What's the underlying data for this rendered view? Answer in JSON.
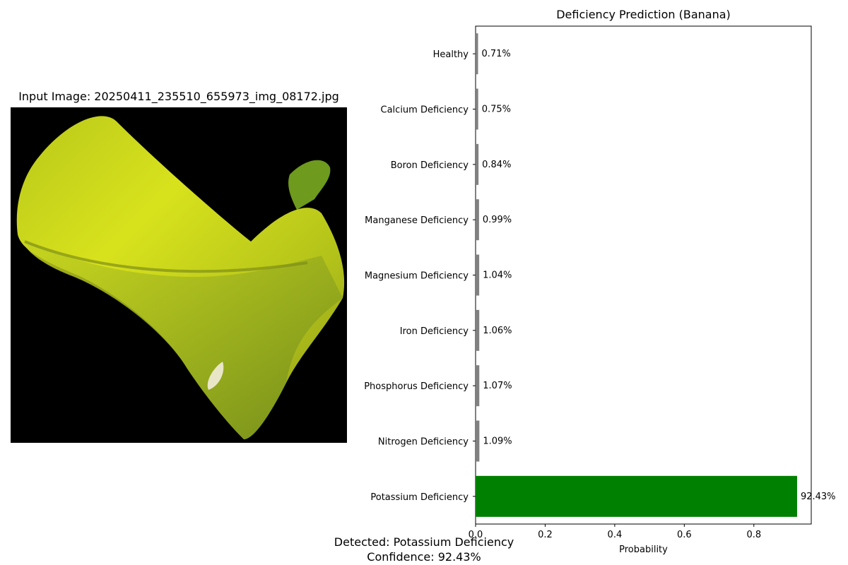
{
  "input_image": {
    "title": "Input Image: 20250411_235510_655973_img_08172.jpg",
    "description": "yellow-green banana leaf on black background"
  },
  "chart_data": {
    "type": "bar",
    "orientation": "horizontal",
    "title": "Deficiency Prediction (Banana)",
    "xlabel": "Probability",
    "ylabel": "",
    "xlim": [
      0,
      0.965
    ],
    "xticks": [
      0.0,
      0.2,
      0.4,
      0.6,
      0.8
    ],
    "xtick_labels": [
      "0.0",
      "0.2",
      "0.4",
      "0.6",
      "0.8"
    ],
    "categories": [
      "Healthy",
      "Calcium Deficiency",
      "Boron Deficiency",
      "Manganese Deficiency",
      "Magnesium Deficiency",
      "Iron Deficiency",
      "Phosphorus Deficiency",
      "Nitrogen Deficiency",
      "Potassium Deficiency"
    ],
    "values": [
      0.0071,
      0.0075,
      0.0084,
      0.0099,
      0.0104,
      0.0106,
      0.0107,
      0.0109,
      0.9243
    ],
    "value_labels": [
      "0.71%",
      "0.75%",
      "0.84%",
      "0.99%",
      "1.04%",
      "1.06%",
      "1.07%",
      "1.09%",
      "92.43%"
    ],
    "colors": [
      "#808080",
      "#808080",
      "#808080",
      "#808080",
      "#808080",
      "#808080",
      "#808080",
      "#808080",
      "#008000"
    ],
    "grid": false,
    "legend": "none"
  },
  "result": {
    "detected": "Detected: Potassium Deficiency",
    "confidence": "Confidence: 92.43%"
  }
}
